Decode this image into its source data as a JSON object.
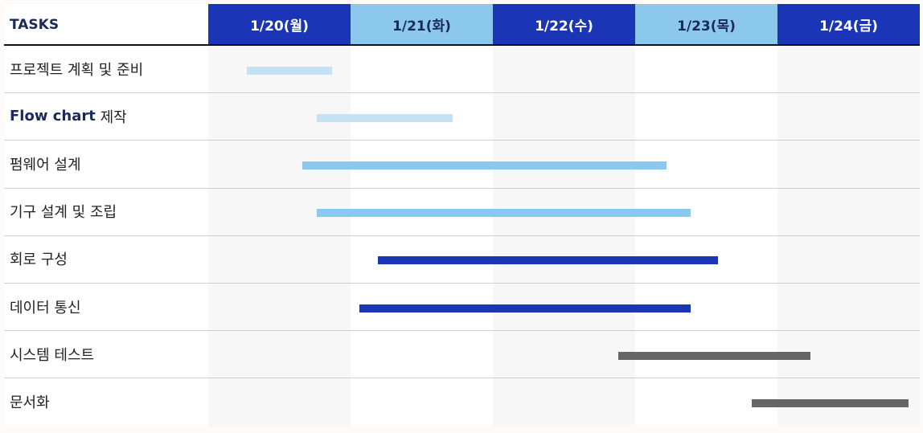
{
  "header": {
    "tasks_label": "TASKS"
  },
  "colors": {
    "header_dark": "#1a35b5",
    "header_light": "#8cc7ee",
    "header_dark_text": "#ffffff",
    "header_light_text": "#1a2a5a",
    "col_shade": "#f7f7f7",
    "col_plain": "#ffffff"
  },
  "chart_data": {
    "type": "gantt",
    "columns": [
      {
        "label": "1/20(월)",
        "style": "dark",
        "shade": true
      },
      {
        "label": "1/21(화)",
        "style": "light",
        "shade": false
      },
      {
        "label": "1/22(수)",
        "style": "dark",
        "shade": true
      },
      {
        "label": "1/23(목)",
        "style": "light",
        "shade": false
      },
      {
        "label": "1/24(금)",
        "style": "dark",
        "shade": true
      }
    ],
    "tasks": [
      {
        "bold_part": "",
        "label": "프로젝트 계획 및 준비",
        "start": 0.27,
        "end": 0.87,
        "color": "#c4e1f6"
      },
      {
        "bold_part": "Flow chart",
        "label": " 제작",
        "start": 0.76,
        "end": 1.72,
        "color": "#c4e1f6"
      },
      {
        "bold_part": "",
        "label": "펌웨어 설계",
        "start": 0.66,
        "end": 3.22,
        "color": "#8cc7ee"
      },
      {
        "bold_part": "",
        "label": "기구 설계 및 조립",
        "start": 0.76,
        "end": 3.39,
        "color": "#8cc7ee"
      },
      {
        "bold_part": "",
        "label": "회로 구성",
        "start": 1.19,
        "end": 3.58,
        "color": "#1a35b5"
      },
      {
        "bold_part": "",
        "label": "데이터 통신",
        "start": 1.06,
        "end": 3.39,
        "color": "#1a35b5"
      },
      {
        "bold_part": "",
        "label": "시스템 테스트",
        "start": 2.88,
        "end": 4.23,
        "color": "#666666"
      },
      {
        "bold_part": "",
        "label": "문서화",
        "start": 3.82,
        "end": 4.92,
        "color": "#666666"
      }
    ]
  }
}
